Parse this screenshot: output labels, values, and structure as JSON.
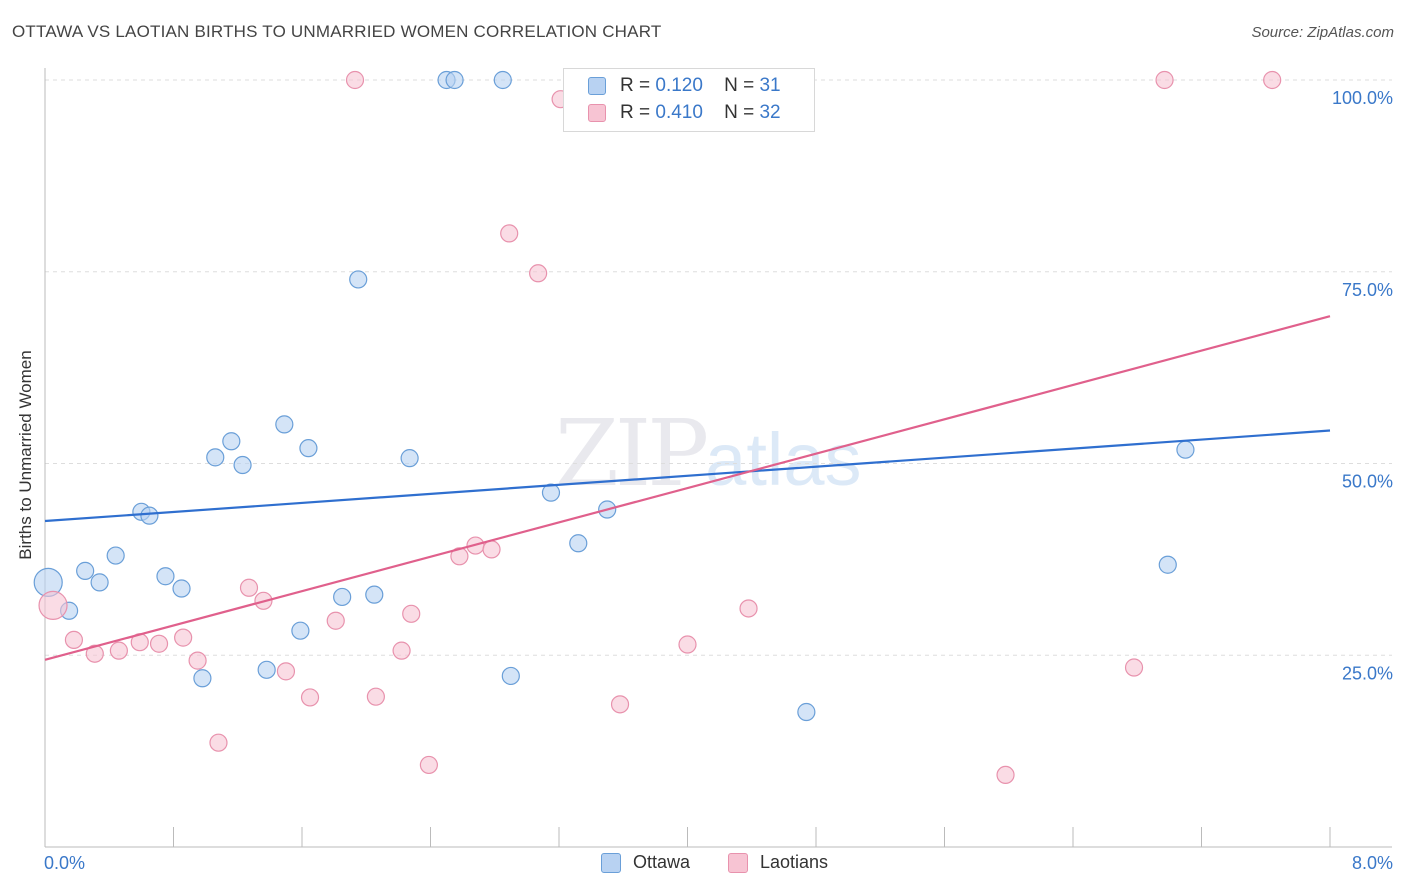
{
  "title": "OTTAWA VS LAOTIAN BIRTHS TO UNMARRIED WOMEN CORRELATION CHART",
  "source": "Source: ZipAtlas.com",
  "watermark": {
    "zip": "ZIP",
    "atlas": "atlas"
  },
  "colors": {
    "ottawa_fill": "#b8d2f2",
    "ottawa_stroke": "#6a9fd8",
    "ottawa_line": "#2f6fcf",
    "laotian_fill": "#f7c4d3",
    "laotian_stroke": "#e892ad",
    "laotian_line": "#e0608c",
    "tick_label": "#3a78c9",
    "grid": "#dddddd"
  },
  "legend": {
    "rows": [
      {
        "r_label": "R =",
        "r_value": "0.120",
        "n_label": "N =",
        "n_value": "31"
      },
      {
        "r_label": "R =",
        "r_value": "0.410",
        "n_label": "N =",
        "n_value": "32"
      }
    ]
  },
  "bottom_legend": {
    "ottawa": "Ottawa",
    "laotians": "Laotians"
  },
  "chart_data": {
    "type": "scatter",
    "title": "OTTAWA VS LAOTIAN BIRTHS TO UNMARRIED WOMEN CORRELATION CHART",
    "xlabel": "",
    "ylabel": "Births to Unmarried Women",
    "xlim": [
      0,
      8
    ],
    "ylim": [
      0,
      100
    ],
    "x_tick_labels": [
      "0.0%",
      "8.0%"
    ],
    "y_ticks": [
      25,
      50,
      75,
      100
    ],
    "y_tick_labels": [
      "25.0%",
      "50.0%",
      "75.0%",
      "100.0%"
    ],
    "grid": true,
    "series": [
      {
        "name": "Ottawa",
        "r": 0.12,
        "n": 31,
        "trend": {
          "x": [
            0,
            8
          ],
          "y": [
            42.5,
            54.3
          ]
        },
        "points": [
          {
            "x": 0.02,
            "y": 34.5,
            "big": true
          },
          {
            "x": 0.15,
            "y": 30.8
          },
          {
            "x": 0.25,
            "y": 36.0
          },
          {
            "x": 0.34,
            "y": 34.5
          },
          {
            "x": 0.44,
            "y": 38.0
          },
          {
            "x": 0.6,
            "y": 43.7
          },
          {
            "x": 0.65,
            "y": 43.2
          },
          {
            "x": 0.75,
            "y": 35.3
          },
          {
            "x": 0.85,
            "y": 33.7
          },
          {
            "x": 0.98,
            "y": 22.0
          },
          {
            "x": 1.06,
            "y": 50.8
          },
          {
            "x": 1.16,
            "y": 52.9
          },
          {
            "x": 1.23,
            "y": 49.8
          },
          {
            "x": 1.38,
            "y": 23.1
          },
          {
            "x": 1.49,
            "y": 55.1
          },
          {
            "x": 1.59,
            "y": 28.2
          },
          {
            "x": 1.64,
            "y": 52.0
          },
          {
            "x": 1.85,
            "y": 32.6
          },
          {
            "x": 1.95,
            "y": 74.0
          },
          {
            "x": 2.05,
            "y": 32.9
          },
          {
            "x": 2.27,
            "y": 50.7
          },
          {
            "x": 2.5,
            "y": 100.0
          },
          {
            "x": 2.55,
            "y": 100.0
          },
          {
            "x": 2.85,
            "y": 100.0
          },
          {
            "x": 2.9,
            "y": 22.3
          },
          {
            "x": 3.15,
            "y": 46.2
          },
          {
            "x": 3.32,
            "y": 39.6
          },
          {
            "x": 3.5,
            "y": 44.0
          },
          {
            "x": 4.74,
            "y": 17.6
          },
          {
            "x": 6.99,
            "y": 36.8
          },
          {
            "x": 7.1,
            "y": 51.8
          }
        ]
      },
      {
        "name": "Laotians",
        "r": 0.41,
        "n": 32,
        "trend": {
          "x": [
            0,
            8
          ],
          "y": [
            24.4,
            69.2
          ]
        },
        "points": [
          {
            "x": 0.05,
            "y": 31.5,
            "big": true
          },
          {
            "x": 0.18,
            "y": 27.0
          },
          {
            "x": 0.31,
            "y": 25.2
          },
          {
            "x": 0.46,
            "y": 25.6
          },
          {
            "x": 0.59,
            "y": 26.7
          },
          {
            "x": 0.71,
            "y": 26.5
          },
          {
            "x": 0.86,
            "y": 27.3
          },
          {
            "x": 0.95,
            "y": 24.3
          },
          {
            "x": 1.08,
            "y": 13.6
          },
          {
            "x": 1.27,
            "y": 33.8
          },
          {
            "x": 1.36,
            "y": 32.1
          },
          {
            "x": 1.5,
            "y": 22.9
          },
          {
            "x": 1.65,
            "y": 19.5
          },
          {
            "x": 1.81,
            "y": 29.5
          },
          {
            "x": 1.93,
            "y": 100.0
          },
          {
            "x": 2.06,
            "y": 19.6
          },
          {
            "x": 2.22,
            "y": 25.6
          },
          {
            "x": 2.28,
            "y": 30.4
          },
          {
            "x": 2.39,
            "y": 10.7
          },
          {
            "x": 2.58,
            "y": 37.9
          },
          {
            "x": 2.68,
            "y": 39.3
          },
          {
            "x": 2.78,
            "y": 38.8
          },
          {
            "x": 2.89,
            "y": 80.0
          },
          {
            "x": 3.07,
            "y": 74.8
          },
          {
            "x": 3.21,
            "y": 97.5
          },
          {
            "x": 3.58,
            "y": 18.6
          },
          {
            "x": 4.0,
            "y": 26.4
          },
          {
            "x": 4.38,
            "y": 31.1
          },
          {
            "x": 5.98,
            "y": 9.4
          },
          {
            "x": 6.78,
            "y": 23.4
          },
          {
            "x": 6.97,
            "y": 100.0
          },
          {
            "x": 7.64,
            "y": 100.0
          }
        ]
      }
    ]
  }
}
